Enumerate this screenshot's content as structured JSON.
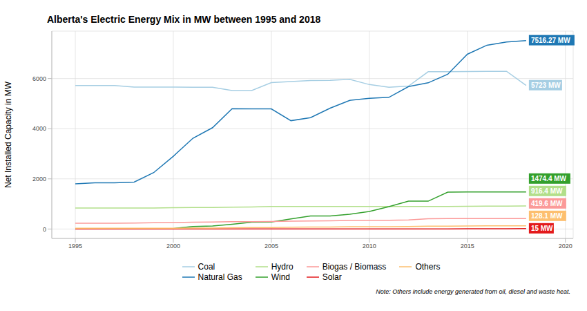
{
  "chart_data": {
    "type": "line",
    "title": "Alberta's Electric Energy Mix in MW between 1995 and 2018",
    "y_label": "Net Installed Capacity in MW",
    "note": "Note: Others include energy generated from oil, diesel and waste heat.",
    "x": [
      1995,
      1996,
      1997,
      1998,
      1999,
      2000,
      2001,
      2002,
      2003,
      2004,
      2005,
      2006,
      2007,
      2008,
      2009,
      2010,
      2011,
      2012,
      2013,
      2014,
      2015,
      2016,
      2017,
      2018
    ],
    "xlim": [
      1993.8,
      2020.4
    ],
    "xticks": [
      1995,
      2000,
      2005,
      2010,
      2015,
      2020
    ],
    "ylim": [
      -376,
      7892
    ],
    "yticks": [
      0,
      2000,
      4000,
      6000
    ],
    "grid": true,
    "legend": "bottom",
    "series": [
      {
        "name": "Coal",
        "color": "#a6cee3",
        "values": [
          5720,
          5720,
          5720,
          5660,
          5660,
          5660,
          5650,
          5650,
          5520,
          5520,
          5840,
          5880,
          5920,
          5930,
          5970,
          5760,
          5650,
          5700,
          6270,
          6270,
          6280,
          6290,
          6290,
          5723
        ],
        "end_label": "5723 MW"
      },
      {
        "name": "Natural Gas",
        "color": "#1f78b4",
        "values": [
          1800,
          1840,
          1840,
          1870,
          2250,
          2900,
          3620,
          4040,
          4800,
          4790,
          4790,
          4320,
          4440,
          4820,
          5130,
          5210,
          5250,
          5680,
          5830,
          6170,
          6970,
          7330,
          7460,
          7516.27
        ],
        "end_label": "7516.27 MW"
      },
      {
        "name": "Hydro",
        "color": "#b2df8a",
        "values": [
          840,
          840,
          840,
          840,
          840,
          850,
          860,
          860,
          870,
          880,
          900,
          900,
          900,
          900,
          900,
          900,
          900,
          900,
          900,
          900,
          905,
          910,
          915,
          916.4
        ],
        "end_label": "916.4 MW"
      },
      {
        "name": "Wind",
        "color": "#33a02c",
        "values": [
          10,
          10,
          20,
          20,
          20,
          20,
          100,
          120,
          190,
          270,
          280,
          400,
          520,
          520,
          590,
          700,
          890,
          1110,
          1110,
          1470,
          1480,
          1480,
          1474.4,
          1474.4
        ],
        "end_label": "1474.4 MW"
      },
      {
        "name": "Biogas / Biomass",
        "color": "#fb9a99",
        "values": [
          230,
          230,
          230,
          240,
          250,
          260,
          270,
          280,
          290,
          295,
          300,
          310,
          320,
          330,
          340,
          345,
          350,
          360,
          410,
          415,
          418,
          419.6,
          419.6,
          419.6
        ],
        "end_label": "419.6 MW"
      },
      {
        "name": "Solar",
        "color": "#e31a1c",
        "values": [
          0,
          0,
          0,
          0,
          0,
          0,
          0,
          0,
          0,
          0,
          0,
          0,
          0,
          0,
          0,
          0,
          1,
          2,
          3,
          5,
          7,
          10,
          12,
          15
        ],
        "end_label": "15 MW"
      },
      {
        "name": "Others",
        "color": "#fdbf6f",
        "values": [
          30,
          30,
          30,
          30,
          30,
          30,
          40,
          40,
          50,
          60,
          60,
          70,
          80,
          80,
          90,
          90,
          95,
          100,
          110,
          115,
          120,
          125,
          128.1,
          128.1
        ],
        "end_label": "128.1 MW"
      }
    ]
  }
}
